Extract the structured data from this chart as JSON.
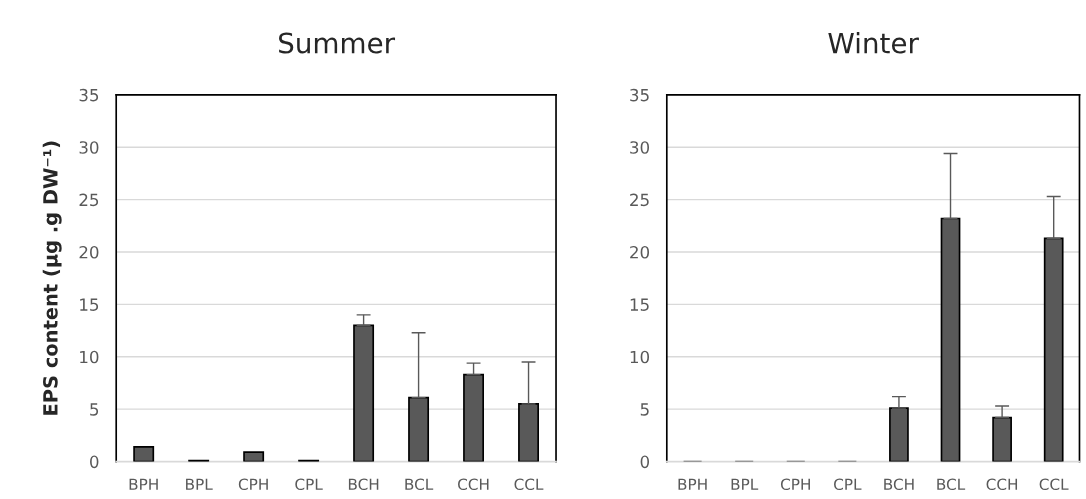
{
  "chart_data": [
    {
      "type": "bar",
      "title": "Summer",
      "ylabel": "EPS content (µg .g DW⁻¹)",
      "categories": [
        "BPH",
        "BPL",
        "CPH",
        "CPL",
        "BCH",
        "BCL",
        "CCH",
        "CCL"
      ],
      "values": [
        1.4,
        0.1,
        0.9,
        0.1,
        13.0,
        6.1,
        8.3,
        5.5
      ],
      "errors": [
        null,
        null,
        null,
        null,
        [
          13.0,
          14.0
        ],
        [
          6.1,
          12.3
        ],
        [
          8.3,
          9.4
        ],
        [
          5.5,
          9.5
        ]
      ],
      "color": "#595959",
      "ylim": [
        0,
        35
      ],
      "yticks": [
        0,
        5,
        10,
        15,
        20,
        25,
        30,
        35
      ],
      "grid": "y"
    },
    {
      "type": "bar",
      "title": "Winter",
      "categories": [
        "BPH",
        "BPL",
        "CPH",
        "CPL",
        "BCH",
        "BCL",
        "CCH",
        "CCL"
      ],
      "values": [
        0,
        0,
        0,
        0,
        5.1,
        23.2,
        4.2,
        21.3
      ],
      "errors": [
        null,
        null,
        null,
        null,
        [
          5.1,
          6.2
        ],
        [
          23.2,
          29.4
        ],
        [
          4.2,
          5.3
        ],
        [
          21.3,
          25.3
        ]
      ],
      "color": "#595959",
      "ylim": [
        0,
        35
      ],
      "yticks": [
        0,
        5,
        10,
        15,
        20,
        25,
        30,
        35
      ],
      "grid": "y"
    }
  ]
}
